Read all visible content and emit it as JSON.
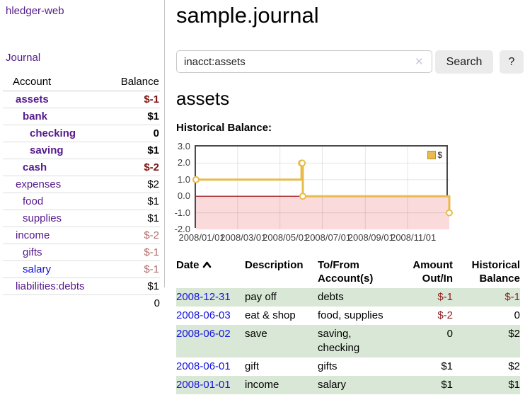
{
  "sidebar": {
    "brand": "hledger-web",
    "journal_link": "Journal",
    "accounts_table": {
      "account_header": "Account",
      "balance_header": "Balance",
      "rows": [
        {
          "name": "assets",
          "balance": "$-1",
          "depth": 1,
          "active": true
        },
        {
          "name": "bank",
          "balance": "$1",
          "depth": 2,
          "active": true
        },
        {
          "name": "checking",
          "balance": "0",
          "depth": 3,
          "active": true
        },
        {
          "name": "saving",
          "balance": "$1",
          "depth": 3,
          "active": true
        },
        {
          "name": "cash",
          "balance": "$-2",
          "depth": 2,
          "active": true
        },
        {
          "name": "expenses",
          "balance": "$2",
          "depth": 1,
          "active": false
        },
        {
          "name": "food",
          "balance": "$1",
          "depth": 2,
          "active": false
        },
        {
          "name": "supplies",
          "balance": "$1",
          "depth": 2,
          "active": false
        },
        {
          "name": "income",
          "balance": "$-2",
          "depth": 1,
          "active": false
        },
        {
          "name": "gifts",
          "balance": "$-1",
          "depth": 2,
          "active": false
        },
        {
          "name": "salary",
          "balance": "$-1",
          "depth": 2,
          "active": false,
          "unvisited": true
        },
        {
          "name": "liabilities:debts",
          "balance": "$1",
          "depth": 1,
          "active": false
        }
      ],
      "total": "0"
    }
  },
  "main": {
    "title": "sample.journal",
    "search": {
      "value": "inacct:assets",
      "clear_icon": "✕",
      "search_button": "Search",
      "help_button": "?"
    },
    "account_heading": "assets",
    "chart_label": "Historical Balance:",
    "register": {
      "headers": {
        "date": "Date",
        "description": "Description",
        "tofrom_line1": "To/From",
        "tofrom_line2": "Account(s)",
        "amount_line1": "Amount",
        "amount_line2": "Out/In",
        "balance_line1": "Historical",
        "balance_line2": "Balance"
      },
      "rows": [
        {
          "date": "2008-12-31",
          "description": "pay off",
          "accounts": "debts",
          "amount": "$-1",
          "balance": "$-1"
        },
        {
          "date": "2008-06-03",
          "description": "eat & shop",
          "accounts": "food, supplies",
          "amount": "$-2",
          "balance": "0"
        },
        {
          "date": "2008-06-02",
          "description": "save",
          "accounts": "saving, checking",
          "amount": "0",
          "balance": "$2"
        },
        {
          "date": "2008-06-01",
          "description": "gift",
          "accounts": "gifts",
          "amount": "$1",
          "balance": "$2"
        },
        {
          "date": "2008-01-01",
          "description": "income",
          "accounts": "salary",
          "amount": "$1",
          "balance": "$1"
        }
      ]
    }
  },
  "chart_data": {
    "type": "line",
    "title": "Historical Balance:",
    "steps": true,
    "xmin": "2008-01-01",
    "xmax": "2008-12-31",
    "ylim": [
      -2,
      3
    ],
    "grid": true,
    "legend_position": "top-right",
    "legend_label": "$",
    "line_color": "#E8BB4C",
    "zero_line_color": "#8e0000",
    "below_zero_fill": "#fadada",
    "series": [
      {
        "name": "$",
        "color": "#E8BB4C",
        "points": [
          [
            "2008-01-01",
            1
          ],
          [
            "2008-06-01",
            2
          ],
          [
            "2008-06-02",
            2
          ],
          [
            "2008-06-03",
            0
          ],
          [
            "2008-12-31",
            -1
          ]
        ]
      }
    ],
    "xticks": [
      {
        "date": "2008-01-01",
        "label": "2008/01/01"
      },
      {
        "date": "2008-03-01",
        "label": "2008/03/01"
      },
      {
        "date": "2008-05-01",
        "label": "2008/05/01"
      },
      {
        "date": "2008-07-01",
        "label": "2008/07/01"
      },
      {
        "date": "2008-09-01",
        "label": "2008/09/01"
      },
      {
        "date": "2008-11-01",
        "label": "2008/11/01"
      }
    ],
    "yticks": [
      {
        "value": 3,
        "label": "3.0"
      },
      {
        "value": 2,
        "label": "2.0"
      },
      {
        "value": 1,
        "label": "1.0"
      },
      {
        "value": 0,
        "label": "0.0"
      },
      {
        "value": -1,
        "label": "-1.0"
      },
      {
        "value": -2,
        "label": "-2.0"
      }
    ]
  }
}
